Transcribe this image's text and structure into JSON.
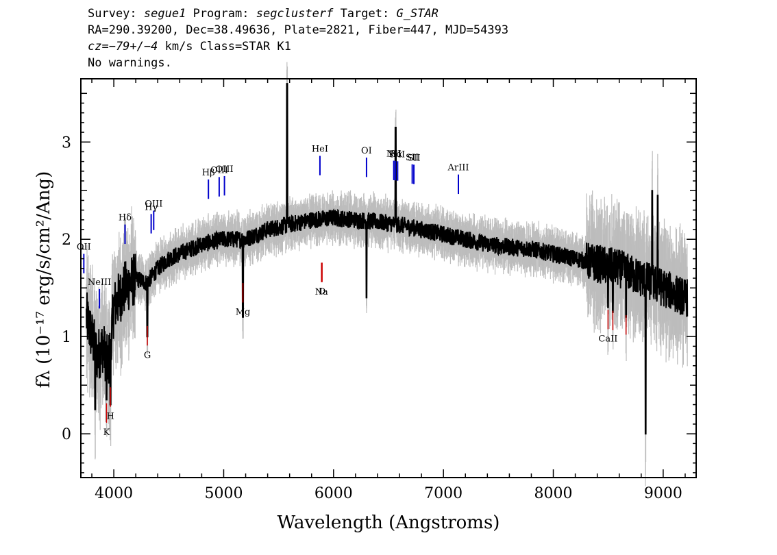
{
  "header": {
    "line1": {
      "survey_label": "Survey:",
      "survey": "segue1",
      "program_label": "Program:",
      "program": "segclusterf",
      "target_label": "Target:",
      "target": "G_STAR"
    },
    "line2": "RA=290.39200, Dec=38.49636, Plate=2821, Fiber=447, MJD=54393",
    "line3": {
      "cz": "cz=−79+/−4",
      "rest": " km/s Class=STAR K1"
    },
    "line4": "No warnings."
  },
  "chart_data": {
    "type": "line",
    "xlabel": "Wavelength (Angstroms)",
    "ylabel": "fλ (10⁻¹⁷ erg/s/cm²/Ang)",
    "xlim": [
      3700,
      9300
    ],
    "ylim": [
      -0.45,
      3.65
    ],
    "x_ticks": [
      4000,
      5000,
      6000,
      7000,
      8000,
      9000
    ],
    "y_ticks": [
      0,
      1,
      2,
      3
    ],
    "continuum": [
      [
        3750,
        1.2
      ],
      [
        3800,
        1.0
      ],
      [
        3850,
        0.8
      ],
      [
        3900,
        0.9
      ],
      [
        3950,
        0.7
      ],
      [
        4000,
        1.3
      ],
      [
        4100,
        1.5
      ],
      [
        4200,
        1.6
      ],
      [
        4300,
        1.55
      ],
      [
        4400,
        1.7
      ],
      [
        4500,
        1.8
      ],
      [
        4600,
        1.85
      ],
      [
        4700,
        1.9
      ],
      [
        4800,
        1.95
      ],
      [
        5000,
        2.0
      ],
      [
        5200,
        2.0
      ],
      [
        5400,
        2.1
      ],
      [
        5600,
        2.15
      ],
      [
        5800,
        2.2
      ],
      [
        6000,
        2.22
      ],
      [
        6200,
        2.2
      ],
      [
        6400,
        2.18
      ],
      [
        6600,
        2.15
      ],
      [
        6800,
        2.1
      ],
      [
        7000,
        2.05
      ],
      [
        7200,
        2.0
      ],
      [
        7400,
        1.95
      ],
      [
        7600,
        1.92
      ],
      [
        7800,
        1.9
      ],
      [
        8000,
        1.85
      ],
      [
        8200,
        1.8
      ],
      [
        8400,
        1.75
      ],
      [
        8600,
        1.7
      ],
      [
        8800,
        1.6
      ],
      [
        9000,
        1.5
      ],
      [
        9200,
        1.4
      ]
    ],
    "features": [
      {
        "x": 3830,
        "y": 0.25
      },
      {
        "x": 3934,
        "y": 0.35
      },
      {
        "x": 3969,
        "y": 0.3
      },
      {
        "x": 4305,
        "y": 1.0
      },
      {
        "x": 5175,
        "y": 1.2
      },
      {
        "x": 5577,
        "y": 3.6
      },
      {
        "x": 6300,
        "y": 1.4
      },
      {
        "x": 6565,
        "y": 3.15
      },
      {
        "x": 8498,
        "y": 1.3
      },
      {
        "x": 8542,
        "y": 1.25
      },
      {
        "x": 8662,
        "y": 1.2
      },
      {
        "x": 8840,
        "y": 0.0
      },
      {
        "x": 8900,
        "y": 2.5
      },
      {
        "x": 8950,
        "y": 2.45
      }
    ],
    "emission_lines": [
      {
        "label": "OII",
        "x": 3727
      },
      {
        "label": "NeIII",
        "x": 3869
      },
      {
        "label": "Hδ",
        "x": 4102
      },
      {
        "label": "Hγ",
        "x": 4340
      },
      {
        "label": "OIII",
        "x": 4363
      },
      {
        "label": "Hβ",
        "x": 4861
      },
      {
        "label": "OIII",
        "x": 4959
      },
      {
        "label": "OIII",
        "x": 5007
      },
      {
        "label": "HeI",
        "x": 5876
      },
      {
        "label": "OI",
        "x": 6300
      },
      {
        "label": "NII",
        "x": 6548
      },
      {
        "label": "Hα",
        "x": 6563
      },
      {
        "label": "NII",
        "x": 6583
      },
      {
        "label": "SII",
        "x": 6716
      },
      {
        "label": "SII",
        "x": 6731
      },
      {
        "label": "ArIII",
        "x": 7136
      }
    ],
    "absorption_lines": [
      {
        "label": "K",
        "x": 3934
      },
      {
        "label": "H",
        "x": 3969
      },
      {
        "label": "G",
        "x": 4305
      },
      {
        "label": "Mg",
        "x": 5175
      },
      {
        "label": "Na",
        "x": 5890
      },
      {
        "label": "D",
        "x": 5896
      },
      {
        "label": "CaII",
        "x": 8498
      },
      {
        "label": "",
        "x": 8542
      },
      {
        "label": "",
        "x": 8662
      }
    ],
    "colors": {
      "flux": "#000000",
      "error_band": "#bdbdbd",
      "emission": "#0000cc",
      "absorption": "#cc0000"
    }
  }
}
